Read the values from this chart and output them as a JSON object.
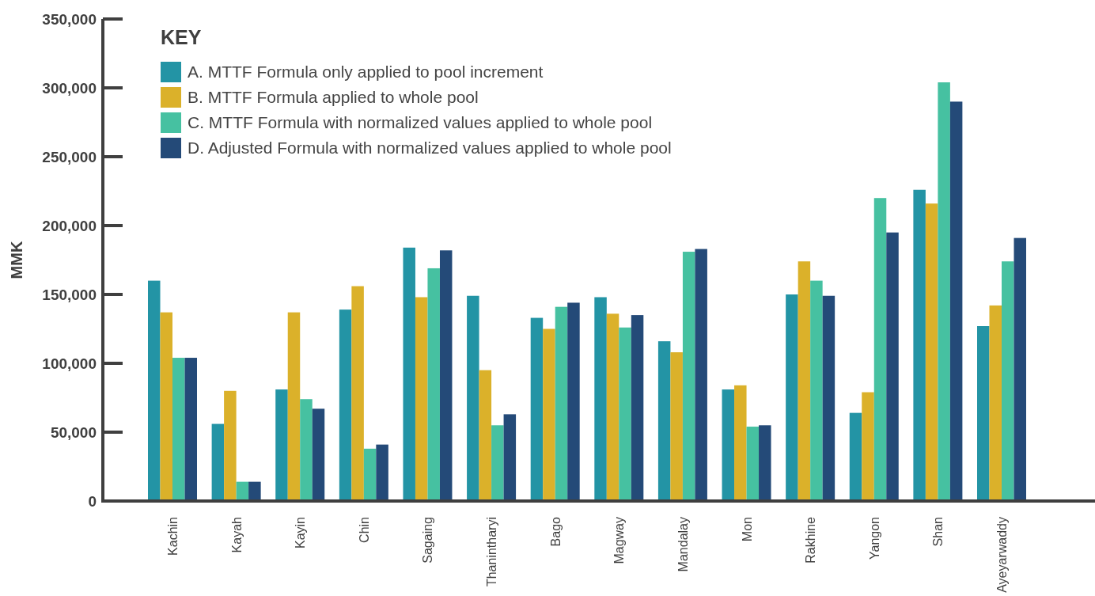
{
  "chart_data": {
    "type": "bar",
    "ylabel": "MMK",
    "legend_title": "KEY",
    "legend": "top left",
    "grid": false,
    "categories": [
      "Kachin",
      "Kayah",
      "Kayin",
      "Chin",
      "Sagaing",
      "Thanintharyi",
      "Bago",
      "Magway",
      "Mandalay",
      "Mon",
      "Rakhine",
      "Yangon",
      "Shan",
      "Ayeyarwaddy"
    ],
    "ylim": [
      0,
      350000
    ],
    "yticks": [
      {
        "value": 0,
        "label": "0"
      },
      {
        "value": 50000,
        "label": "50,000"
      },
      {
        "value": 100000,
        "label": "100,000"
      },
      {
        "value": 150000,
        "label": "150,000"
      },
      {
        "value": 200000,
        "label": "200,000"
      },
      {
        "value": 250000,
        "label": "250,000"
      },
      {
        "value": 300000,
        "label": "300,000"
      },
      {
        "value": 350000,
        "label": "350,000"
      }
    ],
    "series": [
      {
        "name": "A. MTTF Formula only applied to pool increment",
        "color": "#2394a5",
        "values": [
          160000,
          56000,
          81000,
          139000,
          184000,
          149000,
          133000,
          148000,
          116000,
          81000,
          150000,
          64000,
          226000,
          127000
        ]
      },
      {
        "name": "B. MTTF Formula applied to whole pool",
        "color": "#dbb12a",
        "values": [
          137000,
          80000,
          137000,
          156000,
          148000,
          95000,
          125000,
          136000,
          108000,
          84000,
          174000,
          79000,
          216000,
          142000
        ]
      },
      {
        "name": "C. MTTF Formula with normalized values applied to whole pool",
        "color": "#46c1a1",
        "values": [
          104000,
          14000,
          74000,
          38000,
          169000,
          55000,
          141000,
          126000,
          181000,
          54000,
          160000,
          220000,
          304000,
          174000
        ]
      },
      {
        "name": "D. Adjusted Formula with normalized values applied to whole pool",
        "color": "#244a78",
        "values": [
          104000,
          14000,
          67000,
          41000,
          182000,
          63000,
          144000,
          135000,
          183000,
          55000,
          149000,
          195000,
          290000,
          191000
        ]
      }
    ]
  }
}
